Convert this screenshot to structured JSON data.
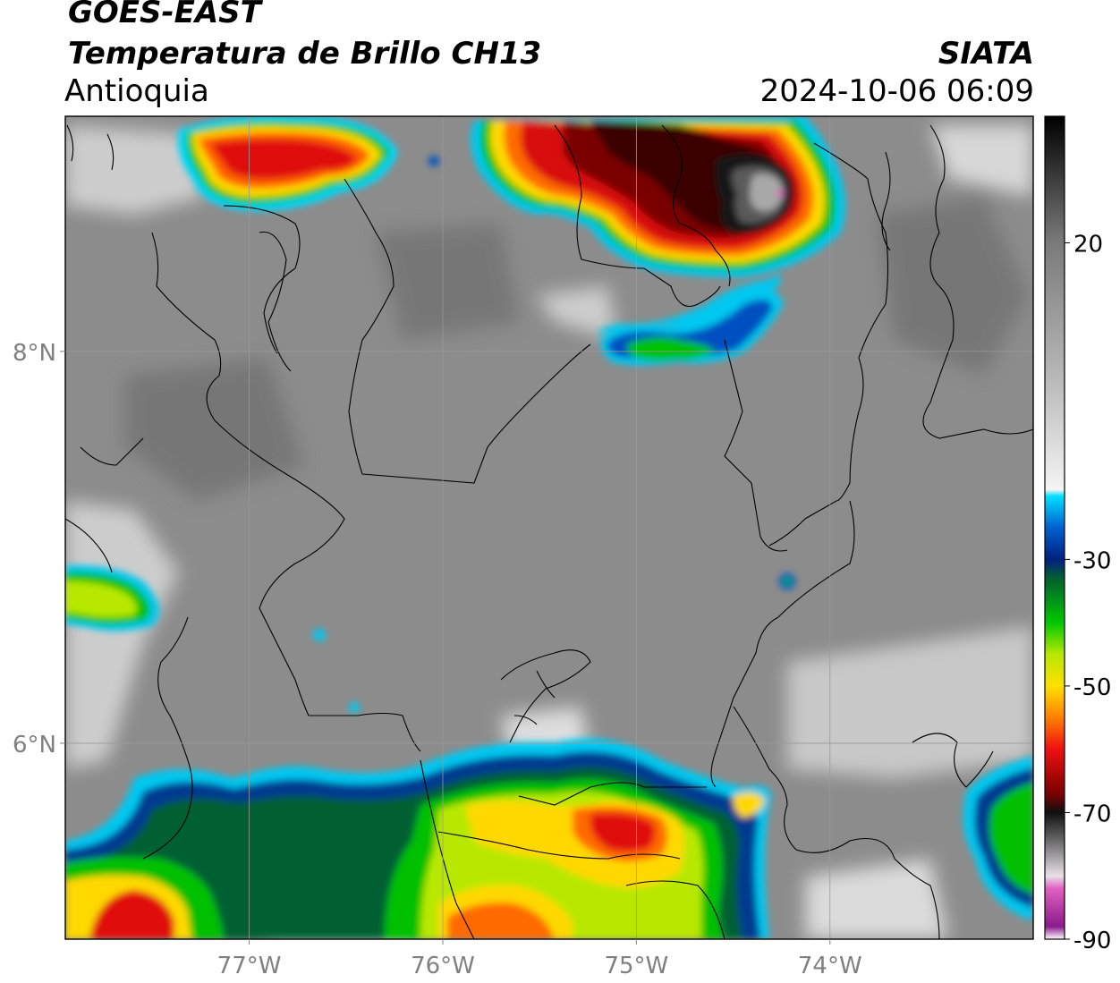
{
  "title": {
    "satellite": "GOES-EAST",
    "product": "Temperatura de Brillo CH13",
    "region": "Antioquia",
    "organization": "SIATA",
    "datetime": "2024-10-06 06:09"
  },
  "map": {
    "lon_range": [
      -77.95,
      -72.95
    ],
    "lat_range": [
      5.0,
      9.2
    ],
    "lon_ticks": [
      {
        "value": -77,
        "label": "77°W"
      },
      {
        "value": -76,
        "label": "76°W"
      },
      {
        "value": -75,
        "label": "75°W"
      },
      {
        "value": -74,
        "label": "74°W"
      }
    ],
    "lat_ticks": [
      {
        "value": 8,
        "label": "8°N"
      },
      {
        "value": 6,
        "label": "6°N"
      }
    ],
    "gridlines": true,
    "background_color": "#8c8c8c"
  },
  "colorbar": {
    "range": [
      -90,
      40
    ],
    "ticks": [
      {
        "value": 20,
        "label": "20"
      },
      {
        "value": -30,
        "label": "-30"
      },
      {
        "value": -50,
        "label": "-50"
      },
      {
        "value": -70,
        "label": "-70"
      },
      {
        "value": -90,
        "label": "-90"
      }
    ],
    "stops": [
      {
        "value": -90,
        "color": "#ffffff"
      },
      {
        "value": -88,
        "color": "#8b1a8b"
      },
      {
        "value": -82,
        "color": "#e060c0"
      },
      {
        "value": -80,
        "color": "#e8e0e8"
      },
      {
        "value": -74,
        "color": "#606060"
      },
      {
        "value": -70,
        "color": "#101010"
      },
      {
        "value": -67,
        "color": "#7a0000"
      },
      {
        "value": -60,
        "color": "#ee1010"
      },
      {
        "value": -55,
        "color": "#ff8000"
      },
      {
        "value": -50,
        "color": "#ffe000"
      },
      {
        "value": -45,
        "color": "#b8e800"
      },
      {
        "value": -40,
        "color": "#00c800"
      },
      {
        "value": -33,
        "color": "#006030"
      },
      {
        "value": -30,
        "color": "#002080"
      },
      {
        "value": -25,
        "color": "#0060d0"
      },
      {
        "value": -20,
        "color": "#00e0ff"
      },
      {
        "value": -19,
        "color": "#f4f4f4"
      },
      {
        "value": 0,
        "color": "#b4b4b4"
      },
      {
        "value": 20,
        "color": "#7a7a7a"
      },
      {
        "value": 40,
        "color": "#000000"
      }
    ]
  },
  "cloud_systems": [
    {
      "name": "caribbean-nw-storm",
      "lon": -76.55,
      "lat": 8.98,
      "peak_temp_c": -60
    },
    {
      "name": "bolivar-storm-core",
      "lon": -74.2,
      "lat": 8.85,
      "peak_temp_c": -82
    },
    {
      "name": "cold-band-mid",
      "lon": -74.85,
      "lat": 8.07,
      "peak_temp_c": -35
    },
    {
      "name": "choco-cell",
      "lon": -77.6,
      "lat": 6.78,
      "peak_temp_c": -42
    },
    {
      "name": "southern-band",
      "lon": -75.3,
      "lat": 5.5,
      "peak_temp_c": -60
    },
    {
      "name": "se-cell",
      "lon": -73.2,
      "lat": 5.5,
      "peak_temp_c": -33
    }
  ]
}
